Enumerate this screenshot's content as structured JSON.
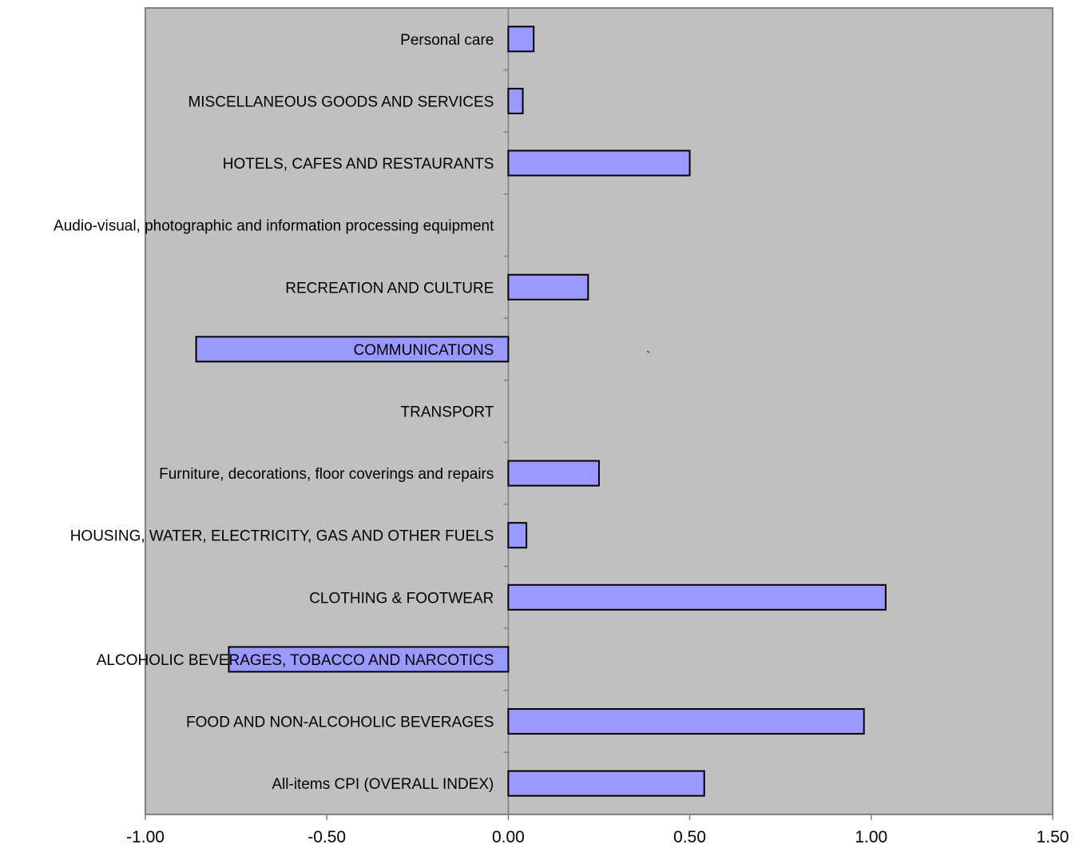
{
  "chart_data": {
    "type": "bar",
    "orientation": "horizontal",
    "title": "",
    "xlabel": "",
    "ylabel": "",
    "xlim": [
      -1.0,
      1.5
    ],
    "x_ticks": [
      "-1.00",
      "-0.50",
      "0.00",
      "0.50",
      "1.00",
      "1.50"
    ],
    "x_tick_values": [
      -1.0,
      -0.5,
      0.0,
      0.5,
      1.0,
      1.5
    ],
    "grid": false,
    "legend": "none",
    "categories": [
      "All-items CPI (OVERALL INDEX)",
      "FOOD AND NON-ALCOHOLIC BEVERAGES",
      "ALCOHOLIC BEVERAGES, TOBACCO AND NARCOTICS",
      "CLOTHING & FOOTWEAR",
      "HOUSING, WATER, ELECTRICITY, GAS AND OTHER FUELS",
      "Furniture, decorations, floor coverings and repairs",
      "TRANSPORT",
      "COMMUNICATIONS",
      "RECREATION AND CULTURE",
      "Audio-visual, photographic and information processing equipment",
      "HOTELS, CAFES AND RESTAURANTS",
      "MISCELLANEOUS GOODS AND SERVICES",
      "Personal care"
    ],
    "values": [
      0.54,
      0.98,
      -0.77,
      1.04,
      0.05,
      0.25,
      0.0,
      -0.86,
      0.22,
      0.0,
      0.5,
      0.04,
      0.07
    ],
    "stray_mark": "`"
  },
  "colors": {
    "plot_background": "#c0c0c0",
    "bar_fill": "#9999ff",
    "bar_stroke": "#000000",
    "axis": "#808080",
    "page_background": "#ffffff"
  }
}
